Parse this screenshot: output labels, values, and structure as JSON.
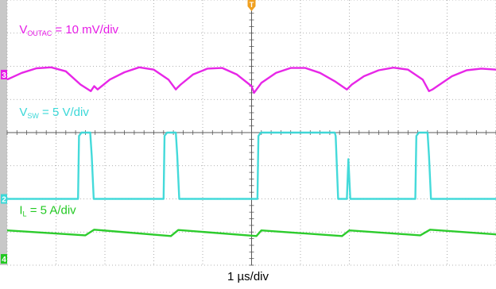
{
  "colors": {
    "vout": "#e61be6",
    "vsw": "#3ad8d8",
    "il": "#22c922",
    "grid_major": "#5a5a5a",
    "grid_minor": "#9a9a9a",
    "screen_bg": "#ffffff",
    "left_bar": "#c8c8c8",
    "trigger_marker": "#f0a020"
  },
  "chart_data": {
    "type": "line",
    "title": "",
    "xlabel": "1 µs/div",
    "ylabel": "",
    "grid": true,
    "divisions": {
      "x": 10,
      "y": 8
    },
    "x_unit": "div",
    "xlim": [
      0,
      10
    ],
    "ylim": [
      0,
      8
    ],
    "trigger_marker": {
      "label": "T",
      "x": 5.0
    },
    "channel_markers": [
      {
        "label": "3",
        "y": 5.75,
        "color_key": "vout"
      },
      {
        "label": "2",
        "y": 2.0,
        "color_key": "vsw"
      },
      {
        "label": "4",
        "y": 0.0,
        "color_key": "il"
      }
    ],
    "series": [
      {
        "name": "VOUTAC = 10 mV/div",
        "name_base": "V",
        "name_sub": "OUTAC",
        "name_rest": " = 10 mV/div",
        "label_pos": {
          "x": 0.25,
          "y": 7.0
        },
        "color_key": "vout",
        "x": [
          0.0,
          0.3,
          0.6,
          0.9,
          1.2,
          1.5,
          1.71,
          1.78,
          1.85,
          2.1,
          2.4,
          2.7,
          3.0,
          3.3,
          3.45,
          3.48,
          3.55,
          3.8,
          4.1,
          4.4,
          4.7,
          5.0,
          5.05,
          5.2,
          5.5,
          5.8,
          6.1,
          6.4,
          6.7,
          6.95,
          7.05,
          7.3,
          7.6,
          7.9,
          8.2,
          8.5,
          8.63,
          8.7,
          8.8,
          9.1,
          9.4,
          9.7,
          10.0
        ],
        "y": [
          5.6,
          5.8,
          5.94,
          5.97,
          5.85,
          5.45,
          5.25,
          5.4,
          5.3,
          5.6,
          5.82,
          5.97,
          5.9,
          5.6,
          5.3,
          5.35,
          5.45,
          5.75,
          5.93,
          5.95,
          5.75,
          5.4,
          5.2,
          5.5,
          5.8,
          5.95,
          5.95,
          5.8,
          5.55,
          5.3,
          5.45,
          5.7,
          5.88,
          5.96,
          5.9,
          5.6,
          5.25,
          5.3,
          5.4,
          5.7,
          5.88,
          5.93,
          5.9
        ]
      },
      {
        "name": "VSW = 5 V/div",
        "name_base": "V",
        "name_sub": "SW",
        "name_rest": " = 5 V/div",
        "label_pos": {
          "x": 0.25,
          "y": 4.5
        },
        "color_key": "vsw",
        "x": [
          0.0,
          1.45,
          1.47,
          1.52,
          1.7,
          1.73,
          1.77,
          3.2,
          3.22,
          3.27,
          3.45,
          3.48,
          3.52,
          4.9,
          5.12,
          5.14,
          5.19,
          6.7,
          6.72,
          6.77,
          6.95,
          6.98,
          7.02,
          8.35,
          8.37,
          8.42,
          8.6,
          8.63,
          8.67,
          10.0
        ],
        "y": [
          2.0,
          2.0,
          3.9,
          4.0,
          4.0,
          3.3,
          2.0,
          2.0,
          3.9,
          4.0,
          4.0,
          3.3,
          2.0,
          2.0,
          2.0,
          3.9,
          4.0,
          4.0,
          3.9,
          2.0,
          2.0,
          3.2,
          2.0,
          2.0,
          3.9,
          4.0,
          4.0,
          3.3,
          2.0,
          2.0
        ]
      },
      {
        "name": "IL = 5 A/div",
        "name_base": "I",
        "name_sub": "L",
        "name_rest": " = 5 A/div",
        "label_pos": {
          "x": 0.25,
          "y": 1.55
        },
        "color_key": "il",
        "x": [
          0.0,
          1.6,
          1.78,
          3.35,
          3.5,
          5.1,
          5.2,
          6.85,
          7.0,
          8.45,
          8.65,
          10.0
        ],
        "y": [
          1.05,
          0.9,
          1.07,
          0.88,
          1.06,
          0.88,
          1.05,
          0.88,
          1.05,
          0.9,
          1.07,
          0.93
        ]
      }
    ]
  }
}
